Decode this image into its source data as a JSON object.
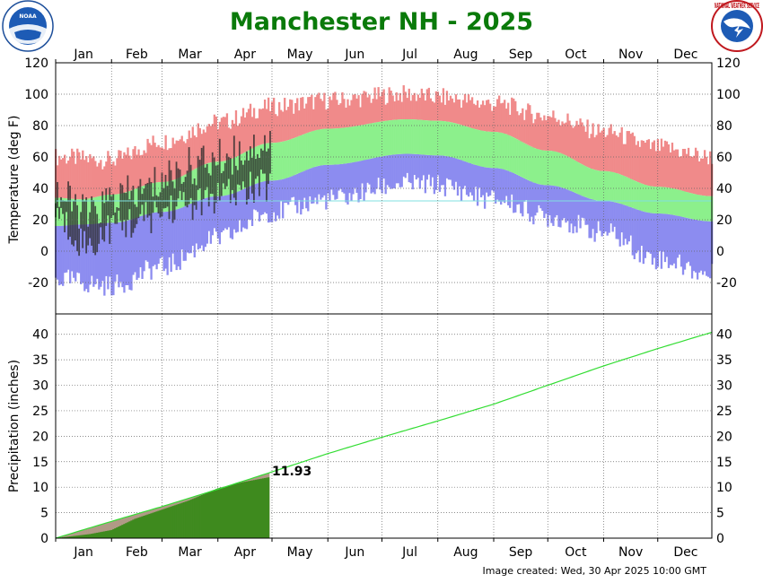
{
  "header": {
    "title": "Manchester NH - 2025",
    "noaa_logo_text": "NOAA",
    "nws_logo_text": "NATIONAL WEATHER SERVICE"
  },
  "footer": {
    "created": "Image created: Wed, 30 Apr 2025 10:00 GMT"
  },
  "colors": {
    "record_band": "#f08a8a",
    "normal_band": "#8cf08c",
    "low_band": "#8c8cf0",
    "observed_temp": "#2a2a2a",
    "precip_normal_line": "#33dd33",
    "precip_observed": "#3e8a1e",
    "precip_deficit": "#b09a86",
    "freezing_line": "#80e0e0",
    "title": "#0a7a0a"
  },
  "chart_data": [
    {
      "type": "bar",
      "subtype": "floating-range",
      "name": "temperature",
      "ylabel": "Temperature (deg F)",
      "ylim": [
        -40,
        120
      ],
      "yticks": [
        -20,
        0,
        20,
        40,
        60,
        80,
        100,
        120
      ],
      "months": [
        "Jan",
        "Feb",
        "Mar",
        "Apr",
        "May",
        "Jun",
        "Jul",
        "Aug",
        "Sep",
        "Oct",
        "Nov",
        "Dec"
      ],
      "x_unit": "day of year",
      "xlim": [
        1,
        365
      ],
      "grid": true,
      "reference_line": 32,
      "normals_curve_points": [
        {
          "day": 1,
          "normal_high": 34,
          "normal_low": 16
        },
        {
          "day": 15,
          "normal_high": 33,
          "normal_low": 17
        },
        {
          "day": 32,
          "normal_high": 36,
          "normal_low": 18
        },
        {
          "day": 60,
          "normal_high": 44,
          "normal_low": 25
        },
        {
          "day": 91,
          "normal_high": 57,
          "normal_low": 35
        },
        {
          "day": 121,
          "normal_high": 69,
          "normal_low": 45
        },
        {
          "day": 152,
          "normal_high": 78,
          "normal_low": 55
        },
        {
          "day": 196,
          "normal_high": 84,
          "normal_low": 62
        },
        {
          "day": 213,
          "normal_high": 83,
          "normal_low": 61
        },
        {
          "day": 244,
          "normal_high": 76,
          "normal_low": 53
        },
        {
          "day": 274,
          "normal_high": 64,
          "normal_low": 42
        },
        {
          "day": 305,
          "normal_high": 51,
          "normal_low": 32
        },
        {
          "day": 335,
          "normal_high": 41,
          "normal_low": 24
        },
        {
          "day": 365,
          "normal_high": 35,
          "normal_low": 19
        }
      ],
      "records_curve_points": [
        {
          "day": 1,
          "record_high": 60,
          "record_low": -18
        },
        {
          "day": 32,
          "record_high": 58,
          "record_low": -22
        },
        {
          "day": 60,
          "record_high": 70,
          "record_low": -10
        },
        {
          "day": 91,
          "record_high": 82,
          "record_low": 8
        },
        {
          "day": 121,
          "record_high": 92,
          "record_low": 25
        },
        {
          "day": 152,
          "record_high": 96,
          "record_low": 33
        },
        {
          "day": 196,
          "record_high": 100,
          "record_low": 43
        },
        {
          "day": 213,
          "record_high": 98,
          "record_low": 42
        },
        {
          "day": 244,
          "record_high": 94,
          "record_low": 33
        },
        {
          "day": 274,
          "record_high": 86,
          "record_low": 22
        },
        {
          "day": 305,
          "record_high": 76,
          "record_low": 12
        },
        {
          "day": 335,
          "record_high": 66,
          "record_low": -5
        },
        {
          "day": 365,
          "record_high": 60,
          "record_low": -15
        }
      ],
      "observed_points": [
        {
          "day": 1,
          "high": 38,
          "low": 25
        },
        {
          "day": 10,
          "high": 30,
          "low": 12
        },
        {
          "day": 20,
          "high": 22,
          "low": 2
        },
        {
          "day": 30,
          "high": 32,
          "low": 15
        },
        {
          "day": 40,
          "high": 35,
          "low": 18
        },
        {
          "day": 50,
          "high": 38,
          "low": 20
        },
        {
          "day": 60,
          "high": 45,
          "low": 25
        },
        {
          "day": 70,
          "high": 52,
          "low": 30
        },
        {
          "day": 80,
          "high": 55,
          "low": 30
        },
        {
          "day": 90,
          "high": 58,
          "low": 34
        },
        {
          "day": 100,
          "high": 62,
          "low": 36
        },
        {
          "day": 110,
          "high": 66,
          "low": 40
        },
        {
          "day": 120,
          "high": 70,
          "low": 42
        }
      ]
    },
    {
      "type": "area",
      "name": "precipitation",
      "ylabel": "Precipitation (inches)",
      "ylim": [
        0,
        44
      ],
      "yticks": [
        0,
        5,
        10,
        15,
        20,
        25,
        30,
        35,
        40
      ],
      "months": [
        "Jan",
        "Feb",
        "Mar",
        "Apr",
        "May",
        "Jun",
        "Jul",
        "Aug",
        "Sep",
        "Oct",
        "Nov",
        "Dec"
      ],
      "x_unit": "day of year",
      "xlim": [
        1,
        365
      ],
      "grid": true,
      "normal_cumulative": [
        {
          "day": 1,
          "value": 0
        },
        {
          "day": 32,
          "value": 3.3
        },
        {
          "day": 60,
          "value": 6.2
        },
        {
          "day": 91,
          "value": 9.6
        },
        {
          "day": 121,
          "value": 13.0
        },
        {
          "day": 152,
          "value": 16.6
        },
        {
          "day": 182,
          "value": 19.8
        },
        {
          "day": 213,
          "value": 23.0
        },
        {
          "day": 244,
          "value": 26.3
        },
        {
          "day": 274,
          "value": 30.0
        },
        {
          "day": 305,
          "value": 33.8
        },
        {
          "day": 335,
          "value": 37.2
        },
        {
          "day": 365,
          "value": 40.4
        }
      ],
      "observed_cumulative": [
        {
          "day": 1,
          "value": 0
        },
        {
          "day": 20,
          "value": 0.8
        },
        {
          "day": 32,
          "value": 1.6
        },
        {
          "day": 45,
          "value": 3.8
        },
        {
          "day": 60,
          "value": 5.6
        },
        {
          "day": 75,
          "value": 7.4
        },
        {
          "day": 91,
          "value": 9.8
        },
        {
          "day": 105,
          "value": 11.0
        },
        {
          "day": 119,
          "value": 11.93
        }
      ],
      "annotation": {
        "day": 119,
        "value": 11.93,
        "label": "11.93"
      }
    }
  ]
}
